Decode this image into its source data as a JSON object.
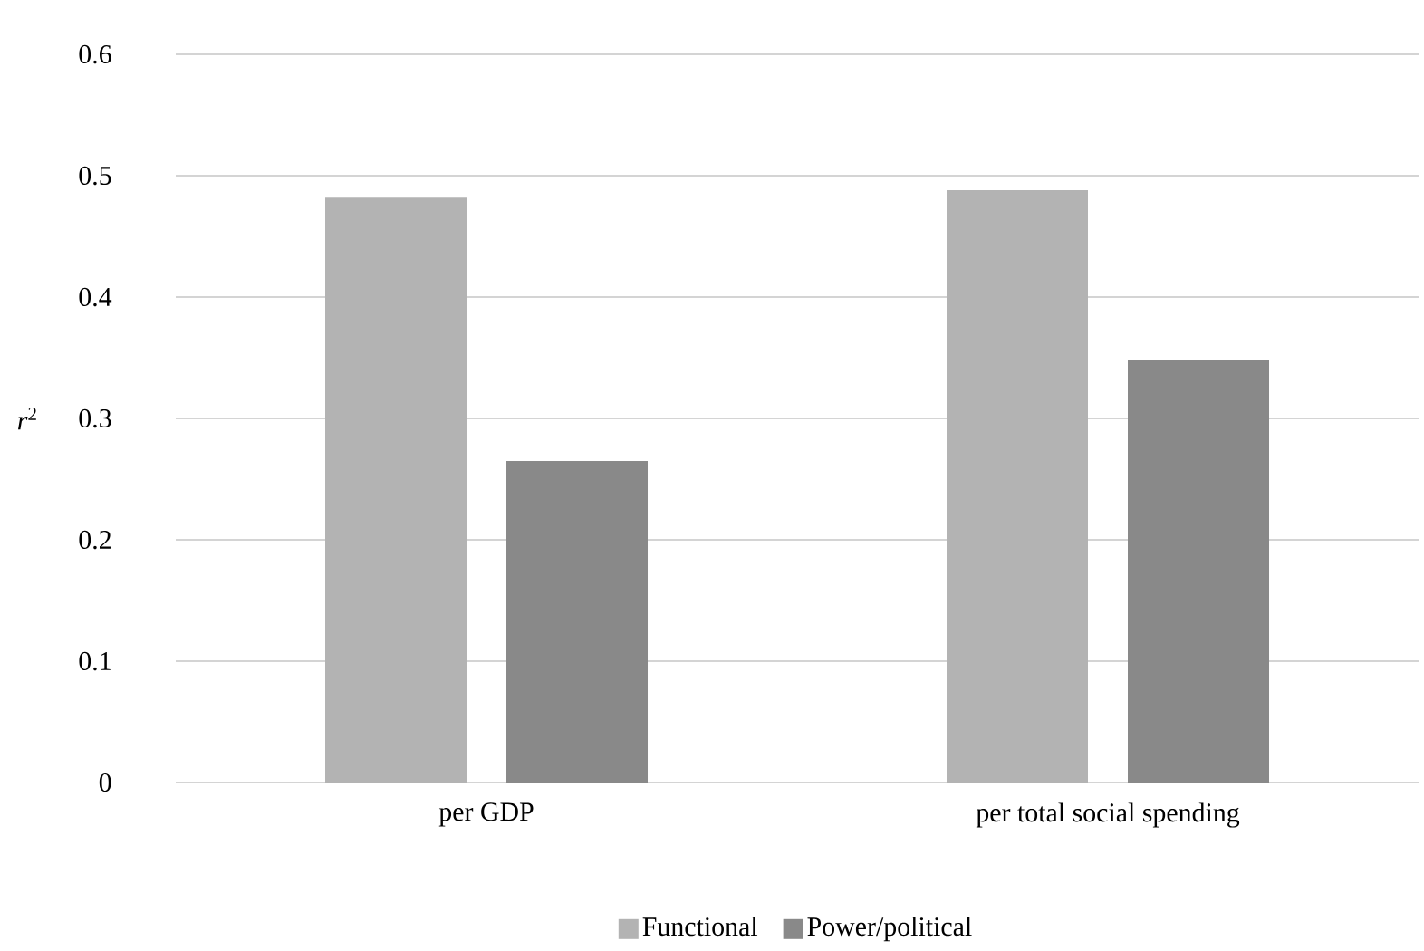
{
  "chart_data": {
    "type": "bar",
    "ylabel": "*r*$^{2}$",
    "categories": [
      "per GDP",
      "per total social spending"
    ],
    "series": [
      {
        "name": "Functional",
        "color": "#b3b3b3",
        "values": [
          0.482,
          0.488
        ]
      },
      {
        "name": "Power/political",
        "color": "#898989",
        "values": [
          0.265,
          0.348
        ]
      }
    ],
    "ylim": [
      0,
      0.6
    ],
    "yticks": [
      0,
      0.1,
      0.2,
      0.3,
      0.4,
      0.5,
      0.6
    ],
    "grid": "y",
    "legend": "bottom"
  }
}
